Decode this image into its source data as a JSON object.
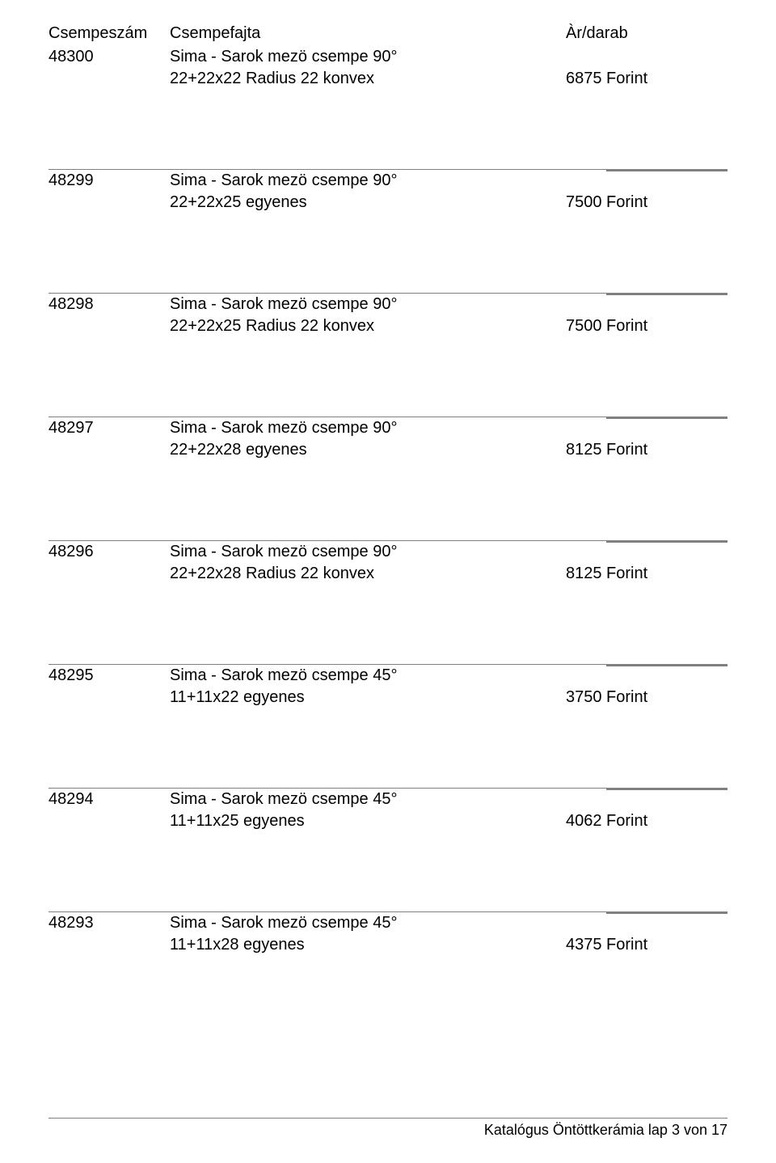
{
  "header": {
    "col1": "Csempeszám",
    "col2": "Csempefajta",
    "col3": "Àr/darab"
  },
  "entries": [
    {
      "num": "48300",
      "type": "Sima - Sarok mezö csempe 90°",
      "spec": "22+22x22  Radius  22 konvex",
      "price": "6875 Forint"
    },
    {
      "num": "48299",
      "type": "Sima - Sarok mezö csempe 90°",
      "spec": "22+22x25  egyenes",
      "price": "7500 Forint"
    },
    {
      "num": "48298",
      "type": "Sima - Sarok mezö csempe 90°",
      "spec": "22+22x25  Radius  22 konvex",
      "price": "7500 Forint"
    },
    {
      "num": "48297",
      "type": "Sima - Sarok mezö csempe 90°",
      "spec": "22+22x28  egyenes",
      "price": "8125 Forint"
    },
    {
      "num": "48296",
      "type": "Sima - Sarok mezö csempe 90°",
      "spec": "22+22x28  Radius  22 konvex",
      "price": "8125 Forint"
    },
    {
      "num": "48295",
      "type": "Sima - Sarok mezö csempe 45°",
      "spec": "11+11x22  egyenes",
      "price": "3750 Forint"
    },
    {
      "num": "48294",
      "type": "Sima - Sarok mezö csempe 45°",
      "spec": "11+11x25  egyenes",
      "price": "4062 Forint"
    },
    {
      "num": "48293",
      "type": "Sima - Sarok mezö csempe 45°",
      "spec": "11+11x28  egyenes",
      "price": "4375 Forint"
    }
  ],
  "footer": "Katalógus Öntöttkerámia lap 3 von 17"
}
